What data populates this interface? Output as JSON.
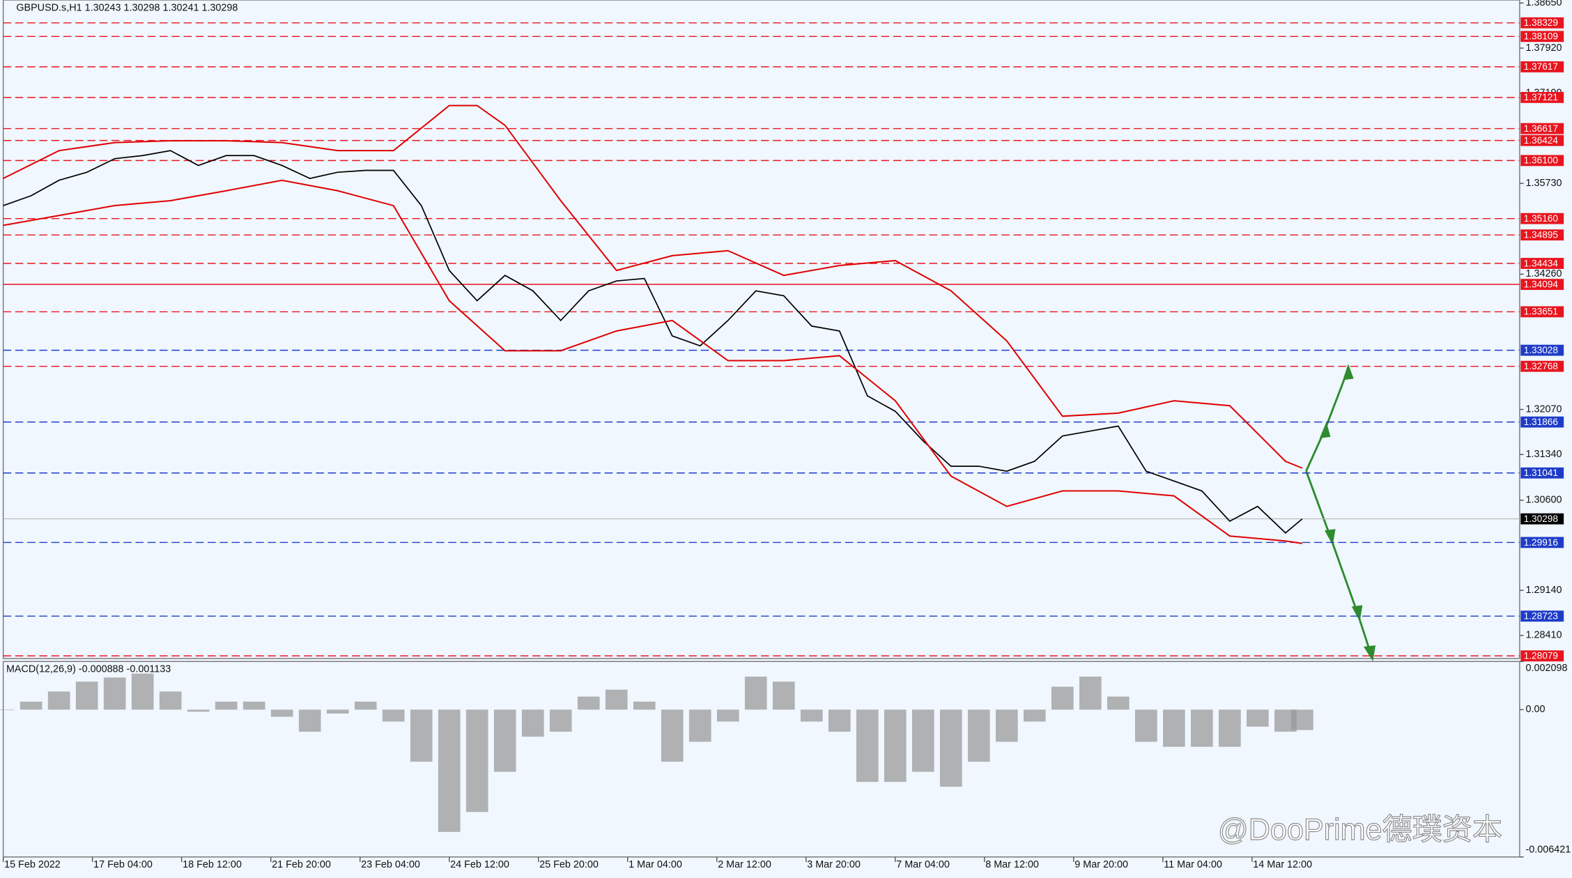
{
  "chart_data": [
    {
      "type": "line",
      "title": "GBPUSD.s,H1  1.30243 1.30298 1.30241 1.30298",
      "xlim": [
        0,
        544
      ],
      "xticks": [
        {
          "value": 0,
          "label": "15 Feb 2022"
        },
        {
          "value": 32,
          "label": "17 Feb 04:00"
        },
        {
          "value": 64,
          "label": "18 Feb 12:00"
        },
        {
          "value": 96,
          "label": "21 Feb 20:00"
        },
        {
          "value": 128,
          "label": "23 Feb 04:00"
        },
        {
          "value": 160,
          "label": "24 Feb 12:00"
        },
        {
          "value": 192,
          "label": "25 Feb 20:00"
        },
        {
          "value": 224,
          "label": "1 Mar 04:00"
        },
        {
          "value": 256,
          "label": "2 Mar 12:00"
        },
        {
          "value": 288,
          "label": "3 Mar 20:00"
        },
        {
          "value": 320,
          "label": "7 Mar 04:00"
        },
        {
          "value": 352,
          "label": "8 Mar 12:00"
        },
        {
          "value": 384,
          "label": "9 Mar 20:00"
        },
        {
          "value": 416,
          "label": "11 Mar 04:00"
        },
        {
          "value": 448,
          "label": "14 Mar 12:00"
        }
      ],
      "ylim": [
        1.28037,
        1.38699
      ],
      "yticks": [
        {
          "value": 1.3865,
          "label": "1.38650"
        },
        {
          "value": 1.3792,
          "label": "1.37920"
        },
        {
          "value": 1.3719,
          "label": "1.37190"
        },
        {
          "value": 1.3573,
          "label": "1.35730"
        },
        {
          "value": 1.3426,
          "label": "1.34260"
        },
        {
          "value": 1.3207,
          "label": "1.32070"
        },
        {
          "value": 1.3134,
          "label": "1.31340"
        },
        {
          "value": 1.306,
          "label": "1.30600"
        },
        {
          "value": 1.2914,
          "label": "1.29140"
        },
        {
          "value": 1.2841,
          "label": "1.28410"
        }
      ],
      "series": [
        {
          "color": "#000000",
          "x": [
            0,
            10,
            20,
            30,
            40,
            50,
            60,
            70,
            80,
            90,
            100,
            110,
            120,
            130,
            140,
            150,
            160,
            170,
            180,
            190,
            200,
            210,
            220,
            230,
            240,
            250,
            260,
            270,
            280,
            290,
            300,
            310,
            320,
            330,
            340,
            350,
            360,
            370,
            380,
            390,
            400,
            410,
            420,
            430,
            440,
            450,
            460,
            466
          ],
          "values": [
            1.3537,
            1.3553,
            1.3578,
            1.3591,
            1.3613,
            1.3618,
            1.3626,
            1.3602,
            1.3618,
            1.3618,
            1.3602,
            1.3581,
            1.3591,
            1.3594,
            1.3594,
            1.3537,
            1.3432,
            1.3383,
            1.3424,
            1.3399,
            1.3351,
            1.3399,
            1.3415,
            1.3419,
            1.3326,
            1.331,
            1.3351,
            1.3399,
            1.3391,
            1.3342,
            1.3334,
            1.3229,
            1.3204,
            1.3156,
            1.3115,
            1.3115,
            1.3107,
            1.3123,
            1.3164,
            1.3172,
            1.318,
            1.3107,
            1.3091,
            1.3075,
            1.3026,
            1.305,
            1.3007,
            1.30298
          ]
        },
        {
          "color": "#e00000",
          "x": [
            0,
            20,
            40,
            60,
            80,
            100,
            120,
            140,
            160,
            170,
            180,
            200,
            220,
            240,
            260,
            280,
            300,
            320,
            340,
            360,
            380,
            400,
            420,
            440,
            460,
            466
          ],
          "values": [
            1.3581,
            1.3626,
            1.3639,
            1.3642,
            1.3642,
            1.3639,
            1.3626,
            1.3626,
            1.3699,
            1.3699,
            1.3667,
            1.3545,
            1.3432,
            1.3456,
            1.3464,
            1.3424,
            1.344,
            1.3448,
            1.3399,
            1.3318,
            1.3196,
            1.3201,
            1.3221,
            1.3213,
            1.3123,
            1.3112
          ]
        },
        {
          "color": "#e00000",
          "x": [
            0,
            20,
            40,
            60,
            80,
            100,
            120,
            140,
            160,
            180,
            200,
            220,
            240,
            260,
            280,
            300,
            320,
            340,
            360,
            380,
            400,
            420,
            440,
            460,
            466
          ],
          "values": [
            1.3505,
            1.3521,
            1.3537,
            1.3545,
            1.3561,
            1.3578,
            1.3561,
            1.3537,
            1.3383,
            1.3302,
            1.3302,
            1.3334,
            1.3351,
            1.3286,
            1.3286,
            1.3294,
            1.3221,
            1.3099,
            1.305,
            1.3075,
            1.3075,
            1.3067,
            1.3002,
            1.2994,
            1.299
          ]
        }
      ],
      "levels": [
        {
          "value": 1.38329,
          "label": "1.38329",
          "color": "#e8141e",
          "solid": false
        },
        {
          "value": 1.38109,
          "label": "1.38109",
          "color": "#e8141e",
          "solid": false
        },
        {
          "value": 1.37617,
          "label": "1.37617",
          "color": "#e8141e",
          "solid": false
        },
        {
          "value": 1.37121,
          "label": "1.37121",
          "color": "#e8141e",
          "solid": false
        },
        {
          "value": 1.36617,
          "label": "1.36617",
          "color": "#e8141e",
          "solid": false
        },
        {
          "value": 1.36424,
          "label": "1.36424",
          "color": "#e8141e",
          "solid": false
        },
        {
          "value": 1.361,
          "label": "1.36100",
          "color": "#e8141e",
          "solid": false
        },
        {
          "value": 1.3516,
          "label": "1.35160",
          "color": "#e8141e",
          "solid": false
        },
        {
          "value": 1.34895,
          "label": "1.34895",
          "color": "#e8141e",
          "solid": false
        },
        {
          "value": 1.34434,
          "label": "1.34434",
          "color": "#e8141e",
          "solid": false
        },
        {
          "value": 1.34094,
          "label": "1.34094",
          "color": "#e8141e",
          "solid": true
        },
        {
          "value": 1.33651,
          "label": "1.33651",
          "color": "#e8141e",
          "solid": false
        },
        {
          "value": 1.33028,
          "label": "1.33028",
          "color": "#1e3cc8",
          "solid": false
        },
        {
          "value": 1.32768,
          "label": "1.32768",
          "color": "#e8141e",
          "solid": false
        },
        {
          "value": 1.31866,
          "label": "1.31866",
          "color": "#1e3cc8",
          "solid": false
        },
        {
          "value": 1.31041,
          "label": "1.31041",
          "color": "#1e3cc8",
          "solid": false
        },
        {
          "value": 1.29916,
          "label": "1.29916",
          "color": "#1e3cc8",
          "solid": false
        },
        {
          "value": 1.28723,
          "label": "1.28723",
          "color": "#1e3cc8",
          "solid": false
        },
        {
          "value": 1.28079,
          "label": "1.28079",
          "color": "#e8141e",
          "solid": false
        }
      ],
      "current": {
        "value": 1.30298,
        "label": "1.30298",
        "color": "#000000"
      }
    },
    {
      "type": "bar",
      "title": "MACD(12,26,9) -0.000888 -0.001133",
      "color": "#9a9a9a",
      "xlim": [
        0,
        544
      ],
      "ylim": [
        -0.006421,
        0.002098
      ],
      "yticks": [
        {
          "value": 0.002098,
          "label": "0.002098"
        },
        {
          "value": 0,
          "label": "0.00"
        },
        {
          "value": -0.006421,
          "label": "-0.006421"
        }
      ],
      "x": [
        0,
        10,
        20,
        30,
        40,
        50,
        60,
        70,
        80,
        90,
        100,
        110,
        120,
        130,
        140,
        150,
        160,
        170,
        180,
        190,
        200,
        210,
        220,
        230,
        240,
        250,
        260,
        270,
        280,
        290,
        300,
        310,
        320,
        330,
        340,
        350,
        360,
        370,
        380,
        390,
        400,
        410,
        420,
        430,
        440,
        450,
        460,
        466
      ],
      "values": [
        0,
        0.00035,
        0.00079,
        0.00122,
        0.0014,
        0.00157,
        0.00079,
        -9e-05,
        0.00035,
        0.00035,
        -0.00031,
        -0.00096,
        -0.00017,
        0.00035,
        -0.00052,
        -0.00227,
        -0.00533,
        -0.00446,
        -0.00271,
        -0.00118,
        -0.00096,
        0.00057,
        0.00087,
        0.00035,
        -0.00227,
        -0.0014,
        -0.00052,
        0.00144,
        0.00122,
        -0.00052,
        -0.00096,
        -0.00315,
        -0.00315,
        -0.00271,
        -0.00336,
        -0.00227,
        -0.0014,
        -0.00052,
        0.001,
        0.00144,
        0.00057,
        -0.0014,
        -0.00162,
        -0.00162,
        -0.00162,
        -0.00074,
        -0.00096,
        -0.000888
      ]
    }
  ],
  "watermark": "@DooPrime德璞资本"
}
